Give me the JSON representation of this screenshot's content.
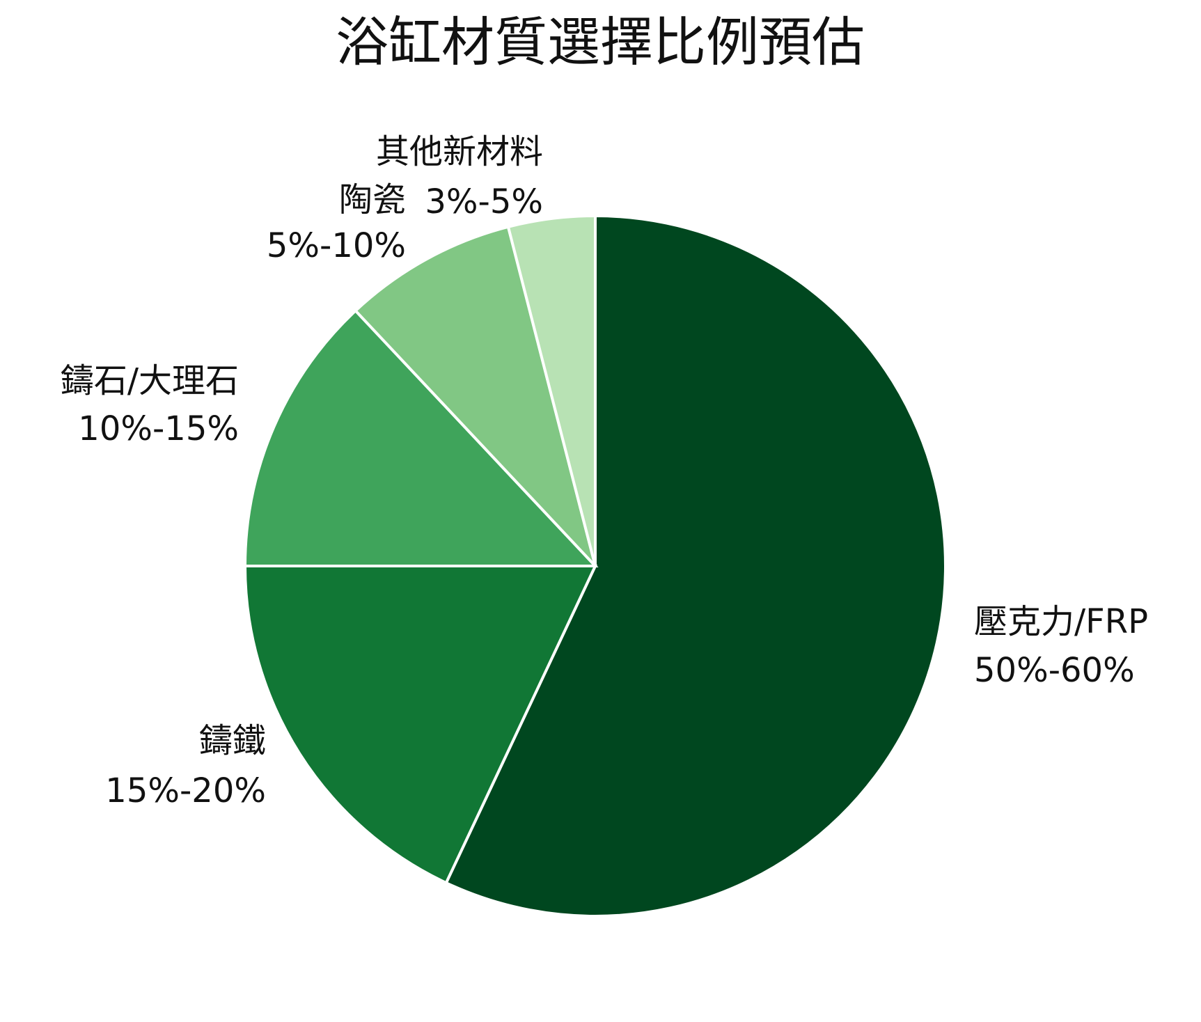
{
  "chart_data": {
    "type": "pie",
    "title": "浴缸材質選擇比例預估",
    "categories": [
      "壓克力/FRP",
      "鑄鐵",
      "鑄石/大理石",
      "陶瓷",
      "其他新材料"
    ],
    "values": [
      57,
      18,
      13,
      8,
      4
    ],
    "value_labels": [
      "50%-60%",
      "15%-20%",
      "10%-15%",
      "5%-10%",
      "3%-5%"
    ],
    "colors": [
      "#00471f",
      "#117735",
      "#3fa45b",
      "#81c784",
      "#b8e2b4"
    ]
  }
}
